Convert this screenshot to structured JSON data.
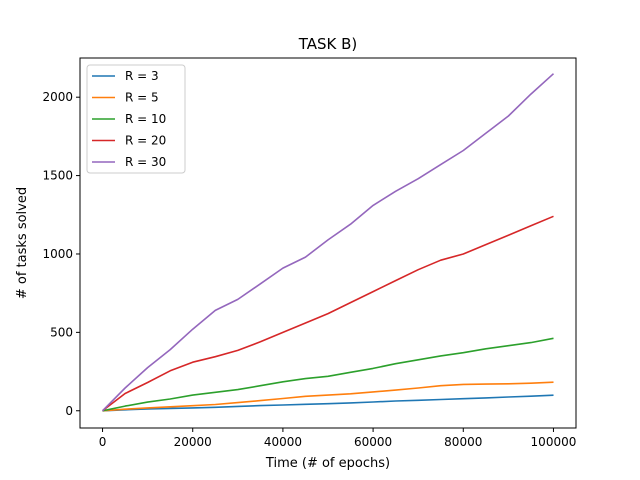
{
  "chart_data": {
    "type": "line",
    "title": "TASK B)",
    "xlabel": "Time (# of epochs)",
    "ylabel": "# of tasks solved",
    "xlim": [
      -5000,
      105000
    ],
    "ylim": [
      -110,
      2250
    ],
    "xticks": [
      0,
      20000,
      40000,
      60000,
      80000,
      100000
    ],
    "yticks": [
      0,
      500,
      1000,
      1500,
      2000
    ],
    "grid": false,
    "legend_position": "top-left",
    "series": [
      {
        "name": "R = 3",
        "color": "#1f77b4",
        "x": [
          0,
          5000,
          10000,
          15000,
          20000,
          25000,
          30000,
          35000,
          40000,
          45000,
          50000,
          55000,
          60000,
          65000,
          70000,
          75000,
          80000,
          85000,
          90000,
          95000,
          100000
        ],
        "y": [
          0,
          6,
          11,
          15,
          18,
          22,
          28,
          33,
          37,
          41,
          45,
          50,
          56,
          62,
          67,
          72,
          77,
          82,
          88,
          93,
          99
        ]
      },
      {
        "name": "R = 5",
        "color": "#ff7f0e",
        "x": [
          0,
          5000,
          10000,
          15000,
          20000,
          25000,
          30000,
          35000,
          40000,
          45000,
          50000,
          55000,
          60000,
          65000,
          70000,
          75000,
          80000,
          85000,
          90000,
          95000,
          100000
        ],
        "y": [
          0,
          10,
          18,
          25,
          32,
          40,
          52,
          65,
          78,
          92,
          100,
          108,
          120,
          132,
          145,
          160,
          168,
          170,
          172,
          176,
          182
        ]
      },
      {
        "name": "R = 10",
        "color": "#2ca02c",
        "x": [
          0,
          5000,
          10000,
          15000,
          20000,
          25000,
          30000,
          35000,
          40000,
          45000,
          50000,
          55000,
          60000,
          65000,
          70000,
          75000,
          80000,
          85000,
          90000,
          95000,
          100000
        ],
        "y": [
          0,
          30,
          55,
          75,
          100,
          118,
          135,
          160,
          185,
          205,
          220,
          245,
          270,
          300,
          325,
          350,
          370,
          395,
          415,
          435,
          462
        ]
      },
      {
        "name": "R = 20",
        "color": "#d62728",
        "x": [
          0,
          5000,
          10000,
          15000,
          20000,
          25000,
          30000,
          35000,
          40000,
          45000,
          50000,
          55000,
          60000,
          65000,
          70000,
          75000,
          80000,
          85000,
          90000,
          95000,
          100000
        ],
        "y": [
          0,
          110,
          180,
          255,
          310,
          345,
          385,
          440,
          500,
          560,
          620,
          690,
          760,
          830,
          900,
          960,
          1000,
          1060,
          1120,
          1180,
          1240
        ]
      },
      {
        "name": "R = 30",
        "color": "#9467bd",
        "x": [
          0,
          5000,
          10000,
          15000,
          20000,
          25000,
          30000,
          35000,
          40000,
          45000,
          50000,
          55000,
          60000,
          65000,
          70000,
          75000,
          80000,
          85000,
          90000,
          95000,
          100000
        ],
        "y": [
          0,
          145,
          275,
          390,
          520,
          640,
          710,
          810,
          910,
          980,
          1090,
          1190,
          1310,
          1400,
          1480,
          1570,
          1660,
          1770,
          1880,
          2020,
          2150
        ]
      }
    ]
  }
}
